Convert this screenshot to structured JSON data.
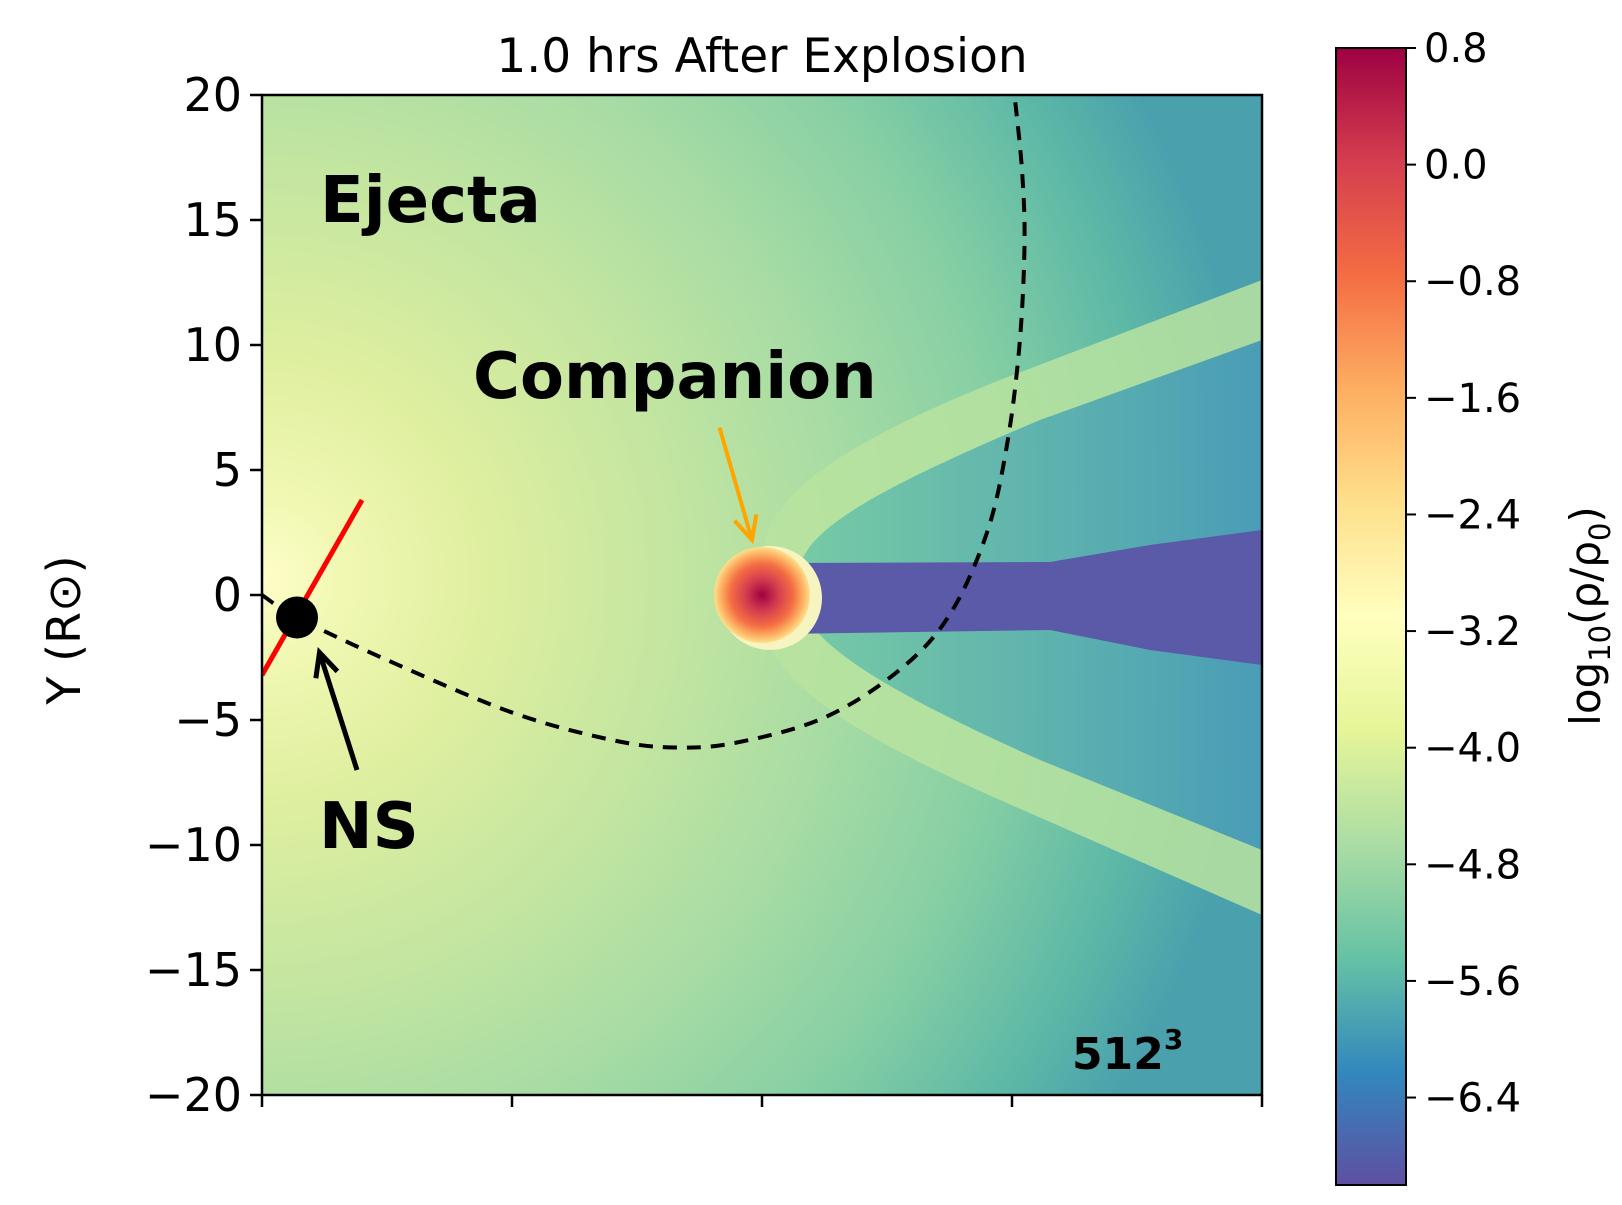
{
  "chart_data": {
    "type": "heatmap",
    "title": "1.0 hrs After Explosion",
    "ylabel": "Y (R⊙)",
    "xlabel": "",
    "ylim": [
      -20,
      20
    ],
    "xlim": [
      -20,
      20
    ],
    "y_ticks": [
      20,
      15,
      10,
      5,
      0,
      -5,
      -10,
      -15,
      -20
    ],
    "y_tick_labels": [
      "20",
      "15",
      "10",
      "5",
      "0",
      "−5",
      "−10",
      "−15",
      "−20"
    ],
    "x_ticks": [
      -20,
      -10,
      0,
      10,
      20
    ],
    "grid": false,
    "colorbar": {
      "label_prefix": "log",
      "label_sub": "10",
      "label_suffix": "(ρ/ρ",
      "label_sub2": "0",
      "label_close": ")",
      "range": [
        -7.0,
        0.8
      ],
      "ticks": [
        0.8,
        0.0,
        -0.8,
        -1.6,
        -2.4,
        -3.2,
        -4.0,
        -4.8,
        -5.6,
        -6.4
      ],
      "tick_labels": [
        "0.8",
        "0.0",
        "−0.8",
        "−1.6",
        "−2.4",
        "−3.2",
        "−4.0",
        "−4.8",
        "−5.6",
        "−6.4"
      ],
      "colormap": "Spectral_r"
    },
    "objects": [
      {
        "name": "NS",
        "x": -18.6,
        "y": -0.9
      },
      {
        "name": "Companion",
        "x": 0.0,
        "y": 0.0,
        "radius": 2.0
      }
    ],
    "orbit_path": [
      [
        -20.0,
        0.0
      ],
      [
        -18.6,
        -0.9
      ],
      [
        -15.0,
        -2.6
      ],
      [
        -10.0,
        -4.7
      ],
      [
        -6.0,
        -5.8
      ],
      [
        -3.5,
        -6.1
      ],
      [
        -1.0,
        -5.9
      ],
      [
        2.5,
        -4.9
      ],
      [
        5.5,
        -3.0
      ],
      [
        7.5,
        -0.8
      ],
      [
        9.0,
        2.5
      ],
      [
        9.8,
        6.0
      ],
      [
        10.3,
        10.0
      ],
      [
        10.5,
        14.0
      ],
      [
        10.4,
        17.0
      ],
      [
        10.1,
        20.0
      ]
    ],
    "kick_line": [
      [
        -20.0,
        -3.2
      ],
      [
        -16.0,
        3.8
      ]
    ],
    "companion_arrow": {
      "from": [
        -1.7,
        6.7
      ],
      "to": [
        -0.4,
        2.2
      ]
    },
    "ns_arrow": {
      "from": [
        -16.2,
        -7.0
      ],
      "to": [
        -17.7,
        -2.3
      ]
    }
  },
  "annotations": {
    "ejecta": "Ejecta",
    "companion": "Companion",
    "ns": "NS",
    "resolution_base": "512",
    "resolution_exp": "3"
  },
  "colors": {
    "ejecta_label": "#ffff00",
    "companion_label": "#ffa500",
    "ns_label": "#000000",
    "kick_line": "#ff0000",
    "orbit": "#000000",
    "resolution_label": "#ffff00"
  }
}
